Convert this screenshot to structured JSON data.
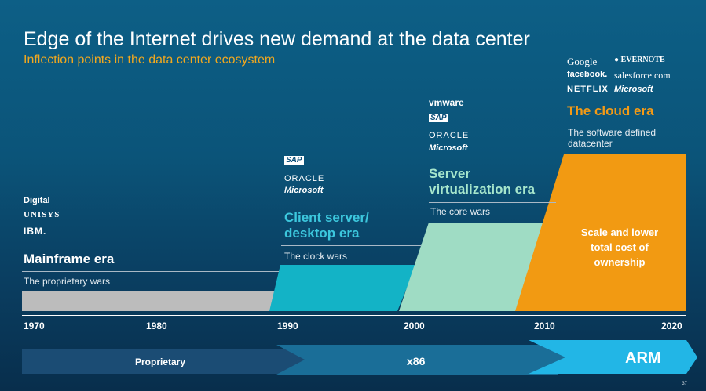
{
  "slide": {
    "title": "Edge of the Internet drives new demand at the data center",
    "subtitle": "Inflection points in the data center ecosystem",
    "page_number": "37"
  },
  "eras": [
    {
      "name": "Mainframe era",
      "tagline": "The proprietary wars",
      "logos": [
        "Digital",
        "UNISYS",
        "IBM."
      ]
    },
    {
      "name": "Client server/ desktop era",
      "name_line1": "Client server/",
      "name_line2": "desktop era",
      "tagline": "The clock wars",
      "logos": [
        "SAP",
        "ORACLE",
        "Microsoft"
      ]
    },
    {
      "name": "Server virtualization era",
      "name_line1": "Server",
      "name_line2": "virtualization era",
      "tagline": "The core wars",
      "logos": [
        "vmware",
        "SAP",
        "ORACLE",
        "Microsoft"
      ]
    },
    {
      "name": "The cloud era",
      "tagline_line1": "The software defined",
      "tagline_line2": "datacenter",
      "logos": [
        "Google",
        "EVERNOTE",
        "facebook.",
        "salesforce.com",
        "NETFLIX",
        "Microsoft"
      ]
    }
  ],
  "cloud_callout": {
    "line1": "Scale and lower",
    "line2": "total cost of",
    "line3": "ownership"
  },
  "timeline": {
    "years": [
      "1970",
      "1980",
      "1990",
      "2000",
      "2010",
      "2020"
    ]
  },
  "architectures": [
    "Proprietary",
    "x86",
    "ARM"
  ],
  "colors": {
    "mainframe": "#bcbcbc",
    "client_server": "#13b3c6",
    "virtualization": "#9fdcc4",
    "cloud": "#f29a12",
    "subtitle": "#f2a81e",
    "arm_band": "#22b6e6",
    "x86_band": "#1a6e98",
    "proprietary_band": "#1b4c74"
  }
}
